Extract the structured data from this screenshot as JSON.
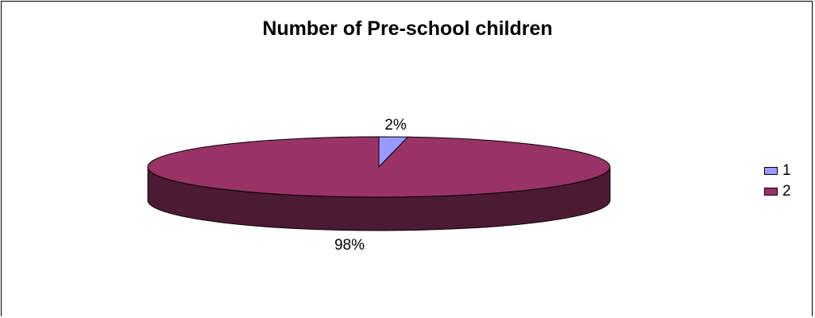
{
  "chart_data": {
    "type": "pie",
    "title": "Number of Pre-school children",
    "categories": [
      "1",
      "2"
    ],
    "values": [
      2,
      98
    ],
    "data_labels": [
      "2%",
      "98%"
    ],
    "colors": [
      "#9999ff",
      "#993366"
    ],
    "side_colors": [
      "#4c4c80",
      "#4d1a33"
    ],
    "style": "3d",
    "legend": {
      "placement": "right",
      "entries": [
        "1",
        "2"
      ]
    }
  }
}
